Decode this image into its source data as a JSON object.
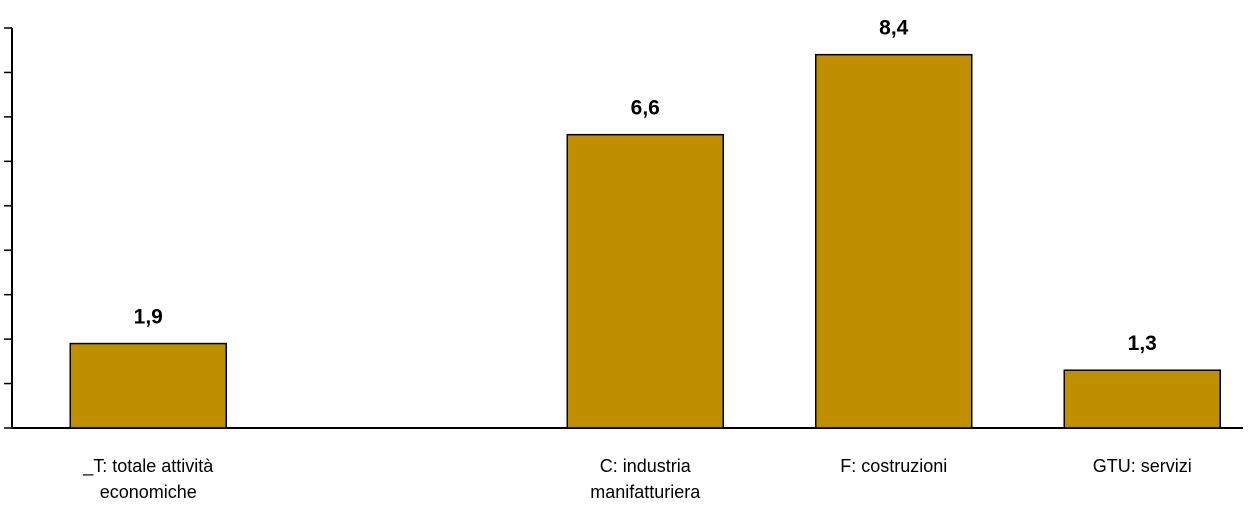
{
  "chart_data": {
    "type": "bar",
    "categories": [
      [
        "_T: totale attività",
        "economiche"
      ],
      [],
      [
        "C: industria",
        "manifatturiera"
      ],
      [
        "F: costruzioni"
      ],
      [
        "GTU: servizi"
      ]
    ],
    "values": [
      1.9,
      null,
      6.6,
      8.4,
      1.3
    ],
    "value_labels": [
      "1,9",
      "",
      "6,6",
      "8,4",
      "1,3"
    ],
    "ylim": [
      0,
      9
    ],
    "ytick_step": 1,
    "bar_color": "#bf8f00",
    "grid": false,
    "title": "",
    "xlabel": "",
    "ylabel": ""
  }
}
